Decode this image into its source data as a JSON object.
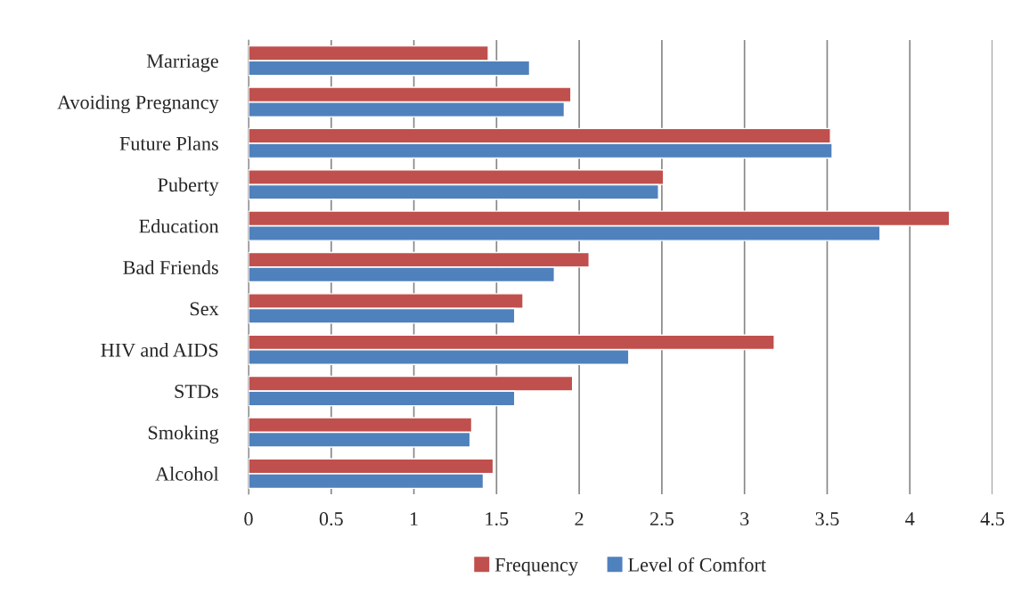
{
  "chart_data": {
    "type": "bar",
    "orientation": "horizontal",
    "categories": [
      "Marriage",
      "Avoiding Pregnancy",
      "Future Plans",
      "Puberty",
      "Education",
      "Bad Friends",
      "Sex",
      "HIV and AIDS",
      "STDs",
      "Smoking",
      "Alcohol"
    ],
    "series": [
      {
        "name": "Frequency",
        "color": "#c0504d",
        "values": [
          1.45,
          1.95,
          3.52,
          2.51,
          4.24,
          2.06,
          1.66,
          3.18,
          1.96,
          1.35,
          1.48
        ]
      },
      {
        "name": "Level of Comfort",
        "color": "#4f81bd",
        "values": [
          1.7,
          1.91,
          3.53,
          2.48,
          3.82,
          1.85,
          1.61,
          2.3,
          1.61,
          1.34,
          1.42
        ]
      }
    ],
    "xlim": [
      0,
      4.5
    ],
    "xticks": [
      0,
      0.5,
      1,
      1.5,
      2,
      2.5,
      3,
      3.5,
      4,
      4.5
    ],
    "grid": "x",
    "legend": "bottom"
  }
}
